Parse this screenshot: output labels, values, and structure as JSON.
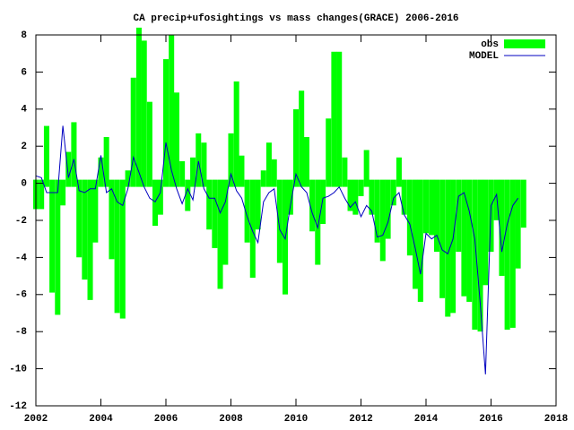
{
  "chart_data": {
    "type": "bar-line",
    "title": "CA precip+ufosightings vs mass changes(GRACE) 2006-2016",
    "x": [
      2002.0,
      2002.17,
      2002.33,
      2002.5,
      2002.67,
      2002.83,
      2003.0,
      2003.17,
      2003.33,
      2003.5,
      2003.67,
      2003.83,
      2004.0,
      2004.17,
      2004.33,
      2004.5,
      2004.67,
      2004.83,
      2005.0,
      2005.17,
      2005.33,
      2005.5,
      2005.67,
      2005.83,
      2006.0,
      2006.17,
      2006.33,
      2006.5,
      2006.67,
      2006.83,
      2007.0,
      2007.17,
      2007.33,
      2007.5,
      2007.67,
      2007.83,
      2008.0,
      2008.17,
      2008.33,
      2008.5,
      2008.67,
      2008.83,
      2009.0,
      2009.17,
      2009.33,
      2009.5,
      2009.67,
      2009.83,
      2010.0,
      2010.17,
      2010.33,
      2010.5,
      2010.67,
      2010.83,
      2011.0,
      2011.17,
      2011.33,
      2011.5,
      2011.67,
      2011.83,
      2012.0,
      2012.17,
      2012.33,
      2012.5,
      2012.67,
      2012.83,
      2013.0,
      2013.17,
      2013.33,
      2013.5,
      2013.67,
      2013.83,
      2014.0,
      2014.17,
      2014.33,
      2014.5,
      2014.67,
      2014.83,
      2015.0,
      2015.17,
      2015.33,
      2015.5,
      2015.67,
      2015.83,
      2016.0,
      2016.17,
      2016.33,
      2016.5,
      2016.67,
      2016.83,
      2017.0
    ],
    "series": [
      {
        "name": "obs",
        "color": "#00ff00",
        "kind": "bar",
        "values": [
          -1.2,
          -1.2,
          2.9,
          -5.7,
          -6.9,
          -1,
          1.5,
          3.1,
          -3.8,
          -5,
          -6.1,
          -3,
          1.2,
          2.3,
          -3.9,
          -6.8,
          -7.1,
          0.5,
          5.5,
          8.2,
          7.5,
          4.2,
          -2.1,
          -1.5,
          6.5,
          7.8,
          4.7,
          1.0,
          -1.3,
          1.2,
          2.5,
          2.0,
          -2.3,
          -3.3,
          -5.5,
          -4.2,
          2.5,
          5.3,
          1.3,
          -3.0,
          -4.9,
          -2.3,
          0.5,
          2,
          1.1,
          -4.1,
          -5.8,
          -1.5,
          3.8,
          4.8,
          2.3,
          -2.4,
          -4.2,
          -2,
          3.3,
          6.9,
          6.9,
          1.2,
          -1.3,
          -1.5,
          -0.5,
          1.6,
          -1.5,
          -3.0,
          -4,
          -2.8,
          -1,
          1.2,
          -1.5,
          -3.7,
          -5.5,
          -6.2,
          -2.5,
          -2.6,
          -3.5,
          -6.0,
          -7,
          -6.8,
          -3.5,
          -5.9,
          -6.2,
          -7.7,
          -7.8,
          -5.3,
          -3.5,
          -1.8,
          -4.8,
          -7.7,
          -7.6,
          -4.4,
          -2.2
        ]
      },
      {
        "name": "MODEL",
        "color": "#0000c0",
        "kind": "line",
        "values": [
          0.4,
          0.3,
          -0.5,
          -0.5,
          -0.5,
          3.1,
          0.3,
          1.3,
          -0.4,
          -0.5,
          -0.3,
          -0.3,
          1.5,
          -0.5,
          -0.3,
          -1.0,
          -1.2,
          -0.3,
          1.4,
          0.6,
          -0.2,
          -0.8,
          -1.0,
          -0.5,
          2.2,
          0.7,
          -0.3,
          -1.1,
          -0.3,
          -0.9,
          1.2,
          -0.3,
          -0.8,
          -0.8,
          -1.6,
          -1.0,
          0.5,
          -0.4,
          -0.8,
          -1.8,
          -2.6,
          -3.2,
          -1.0,
          -0.5,
          -0.3,
          -2.5,
          -3,
          -1.2,
          0.5,
          -0.2,
          -0.5,
          -1.6,
          -2.4,
          -0.8,
          -0.7,
          -0.5,
          -0.2,
          -0.8,
          -1.3,
          -1.0,
          -1.8,
          -1.2,
          -1.5,
          -2.9,
          -2.8,
          -2.1,
          -0.8,
          -0.5,
          -1.7,
          -2.2,
          -3.5,
          -4.9,
          -2.7,
          -3,
          -2.8,
          -3.6,
          -3.8,
          -3.0,
          -0.7,
          -0.5,
          -1.5,
          -3,
          -6.5,
          -10.3,
          -1.2,
          -0.6,
          -3.7,
          -2.2,
          -1.2,
          -0.8,
          null
        ]
      }
    ],
    "xlim": [
      2002,
      2018
    ],
    "xticks": [
      2002,
      2004,
      2006,
      2008,
      2010,
      2012,
      2014,
      2016,
      2018
    ],
    "ylim": [
      -12,
      8
    ],
    "yticks": [
      -12,
      -10,
      -8,
      -6,
      -4,
      -2,
      0,
      2,
      4,
      6,
      8
    ],
    "legend": "top-right"
  }
}
